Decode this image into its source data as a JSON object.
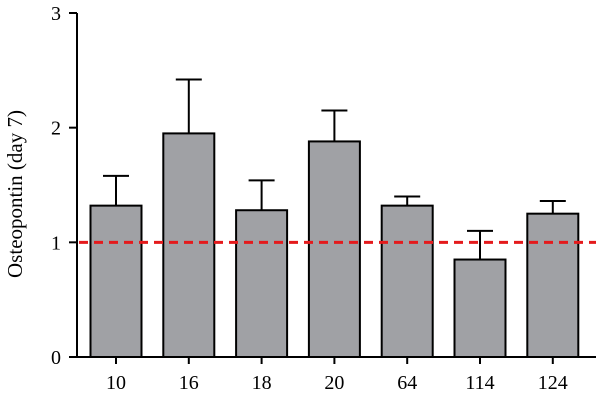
{
  "chart_data": {
    "type": "bar",
    "categories": [
      "10",
      "16",
      "18",
      "20",
      "64",
      "114",
      "124"
    ],
    "values": [
      1.32,
      1.95,
      1.28,
      1.88,
      1.32,
      0.85,
      1.25
    ],
    "errors": [
      0.26,
      0.47,
      0.26,
      0.27,
      0.08,
      0.25,
      0.11
    ],
    "title": "",
    "xlabel": "",
    "ylabel": "Osteopontin (day 7)",
    "ylim": [
      0,
      3
    ],
    "yticks": [
      0,
      1,
      2,
      3
    ],
    "reference_line": {
      "value": 1,
      "style": "dashed",
      "color": "#e41a1c"
    },
    "bar_color": "#a0a1a5",
    "edge_color": "#000000",
    "grid": false,
    "legend": "none"
  }
}
